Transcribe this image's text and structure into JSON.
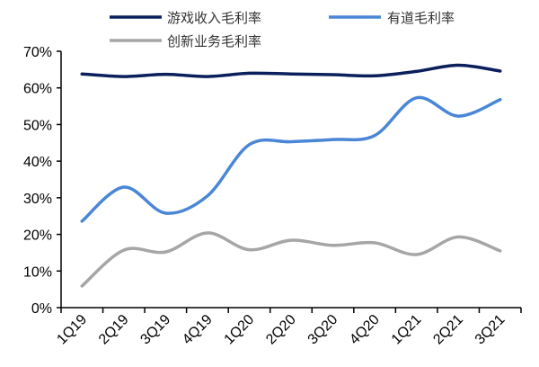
{
  "chart_data": {
    "type": "line",
    "title": "",
    "xlabel": "",
    "ylabel": "",
    "categories": [
      "1Q19",
      "2Q19",
      "3Q19",
      "4Q19",
      "1Q20",
      "2Q20",
      "3Q20",
      "4Q20",
      "1Q21",
      "2Q21",
      "3Q21"
    ],
    "ylim": [
      0,
      70
    ],
    "yticks": [
      "0%",
      "10%",
      "20%",
      "30%",
      "40%",
      "50%",
      "60%",
      "70%"
    ],
    "grid": false,
    "smooth": true,
    "legend_position": "top",
    "series": [
      {
        "name": "游戏收入毛利率",
        "color": "#0b1f5c",
        "values": [
          63.8,
          63.1,
          63.7,
          63.1,
          64.0,
          63.8,
          63.6,
          63.3,
          64.5,
          66.2,
          64.6
        ]
      },
      {
        "name": "有道毛利率",
        "color": "#4a86d6",
        "values": [
          23.6,
          32.9,
          25.8,
          30.5,
          44.5,
          45.3,
          45.9,
          47.0,
          57.3,
          52.3,
          56.8
        ]
      },
      {
        "name": "创新业务毛利率",
        "color": "#a6a6a6",
        "values": [
          5.9,
          15.7,
          15.2,
          20.4,
          15.8,
          18.4,
          17.0,
          17.7,
          14.5,
          19.3,
          15.5
        ]
      }
    ]
  }
}
